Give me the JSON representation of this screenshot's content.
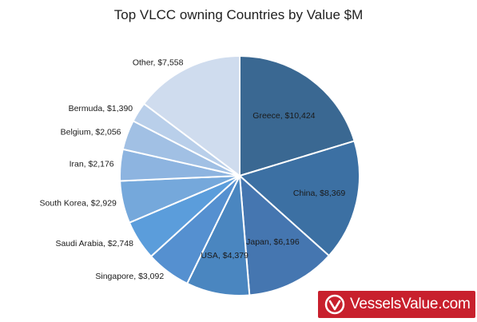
{
  "chart_data": {
    "type": "pie",
    "title": "Top VLCC owning Countries by Value $M",
    "start": "top",
    "direction": "clockwise",
    "slices": [
      {
        "label": "Greece, $10,424",
        "name": "Greece",
        "value": 10424,
        "color": "#3a6892"
      },
      {
        "label": "China, $8,369",
        "name": "China",
        "value": 8369,
        "color": "#3c70a3"
      },
      {
        "label": "Japan, $6,196",
        "name": "Japan",
        "value": 6196,
        "color": "#4576b0"
      },
      {
        "label": "USA, $4,379",
        "name": "USA",
        "value": 4379,
        "color": "#4a86c0"
      },
      {
        "label": "Singapore, $3,092",
        "name": "Singapore",
        "value": 3092,
        "color": "#5590d0"
      },
      {
        "label": "Saudi Arabia, $2,748",
        "name": "Saudi Arabia",
        "value": 2748,
        "color": "#5b9ddb"
      },
      {
        "label": "South Korea, $2,929",
        "name": "South Korea",
        "value": 2929,
        "color": "#75a8db"
      },
      {
        "label": "Iran, $2,176",
        "name": "Iran",
        "value": 2176,
        "color": "#8db4e0"
      },
      {
        "label": "Belgium, $2,056",
        "name": "Belgium",
        "value": 2056,
        "color": "#a1c0e4"
      },
      {
        "label": "Bermuda, $1,390",
        "name": "Bermuda",
        "value": 1390,
        "color": "#b9cfea"
      },
      {
        "label": "Other, $7,558",
        "name": "Other",
        "value": 7558,
        "color": "#cfdcee"
      }
    ]
  },
  "logo": {
    "text": "VesselsValue.com",
    "background": "#c8202d"
  }
}
